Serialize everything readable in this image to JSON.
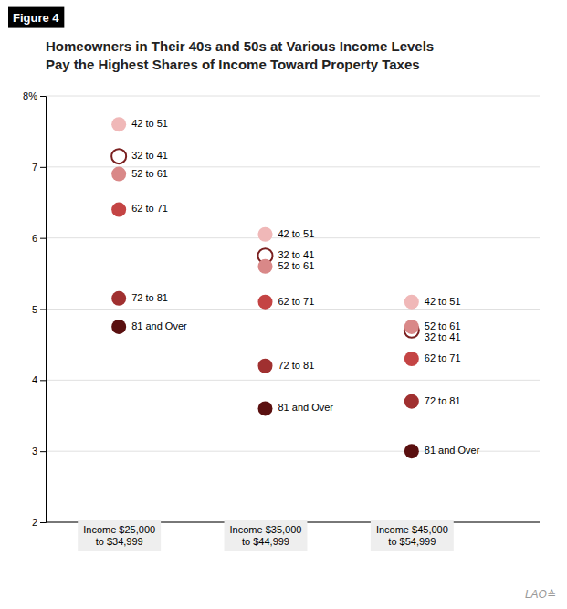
{
  "chart_data": {
    "type": "scatter",
    "title": "Homeowners in Their 40s and 50s at Various Income Levels\nPay the Highest Shares of Income Toward Property Taxes",
    "annotations": [
      "Figure 4",
      "LAO≙"
    ],
    "categories": [
      "Income $25,000\nto $34,999",
      "Income $35,000\nto $44,999",
      "Income $45,000\nto $54,999"
    ],
    "series": [
      {
        "name": "42 to 51",
        "color": "#f0b8b8",
        "marker": "circle",
        "values": [
          7.6,
          6.05,
          5.1
        ]
      },
      {
        "name": "32 to 41",
        "color": "#7a2020",
        "marker": "circle-open",
        "values": [
          7.15,
          5.75,
          4.7
        ]
      },
      {
        "name": "52 to 61",
        "color": "#d98888",
        "marker": "circle",
        "values": [
          6.9,
          5.6,
          4.75
        ]
      },
      {
        "name": "62 to 71",
        "color": "#c44444",
        "marker": "circle",
        "values": [
          6.4,
          5.1,
          4.3
        ]
      },
      {
        "name": "72 to 81",
        "color": "#a03030",
        "marker": "circle",
        "values": [
          5.15,
          4.2,
          3.7
        ]
      },
      {
        "name": "81 and Over",
        "color": "#5a1010",
        "marker": "circle",
        "values": [
          4.75,
          3.6,
          3.0
        ]
      }
    ],
    "ylim": [
      2,
      8
    ],
    "yticks": [
      2,
      3,
      4,
      5,
      6,
      7,
      {
        "value": 8,
        "label": "8%"
      }
    ],
    "grid": true
  }
}
